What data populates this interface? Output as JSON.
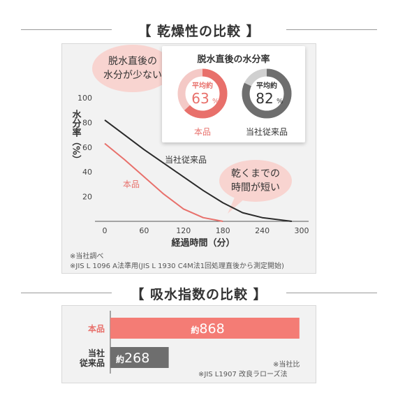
{
  "dryness_section": {
    "title": "【 乾燥性の比較 】",
    "bubble_left": [
      "脱水直後の",
      "水分が少ない"
    ],
    "bubble_right": [
      "乾くまでの",
      "時間が短い"
    ],
    "inset": {
      "title": "脱水直後の水分率",
      "donuts": [
        {
          "label": "本品",
          "prefix": "平均約",
          "value": 63,
          "unit": "%",
          "color": "#e8706b",
          "track": "#f4c9c6"
        },
        {
          "label": "当社従来品",
          "prefix": "平均約",
          "value": 82,
          "unit": "%",
          "color": "#6e6e6e",
          "track": "#d0d0d0"
        }
      ]
    },
    "notes": [
      "※当社調べ",
      "※JIS L 1096 A法準用(JIS L 1930 C4M法1回処理直後から測定開始)"
    ]
  },
  "absorb_section": {
    "title": "【 吸水指数の比較 】",
    "notes": [
      "※当社比",
      "※JIS L1907 改良ラローズ法"
    ]
  },
  "chart_data": [
    {
      "type": "line",
      "title": "",
      "xlabel": "経過時間（分）",
      "ylabel": "水分率（%）",
      "xlim": [
        0,
        300
      ],
      "ylim": [
        0,
        100
      ],
      "x_ticks": [
        0,
        60,
        120,
        180,
        240,
        300
      ],
      "y_ticks": [
        20,
        40,
        60,
        80,
        100
      ],
      "grid": false,
      "series": [
        {
          "name": "当社従来品",
          "color": "#2a2a2a",
          "x": [
            0,
            30,
            60,
            90,
            120,
            150,
            180,
            210,
            240,
            270,
            285
          ],
          "y": [
            82,
            70,
            58,
            47,
            36,
            25,
            15,
            7,
            3,
            1,
            0
          ]
        },
        {
          "name": "本品",
          "color": "#e8706b",
          "x": [
            0,
            30,
            60,
            90,
            120,
            150,
            180
          ],
          "y": [
            63,
            50,
            36,
            22,
            10,
            3,
            0
          ]
        }
      ]
    },
    {
      "type": "bar",
      "orientation": "horizontal",
      "categories": [
        "本品",
        "当社\n従来品"
      ],
      "values": [
        868,
        268
      ],
      "value_prefix": "約",
      "xlim": [
        0,
        1000
      ],
      "colors": [
        "#f47c75",
        "#6e6e6e"
      ],
      "category_colors": [
        "#e8706b",
        "#333333"
      ]
    }
  ]
}
